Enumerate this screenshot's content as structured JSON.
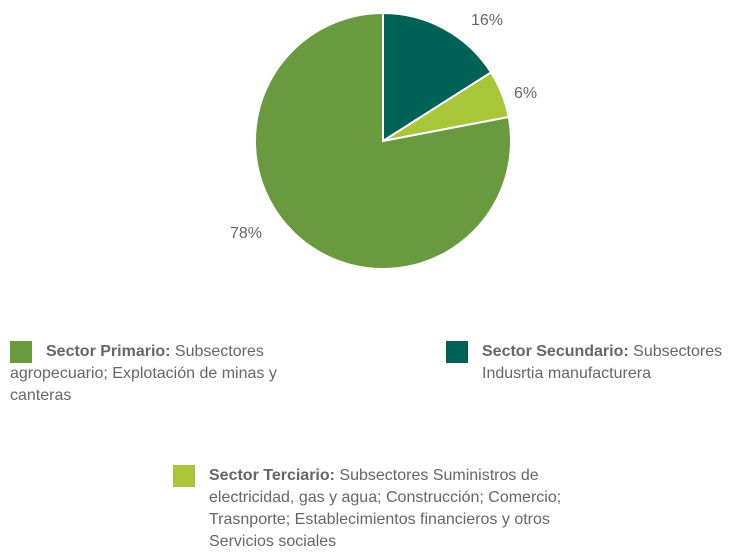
{
  "chart_data": {
    "type": "pie",
    "categories": [
      "Sector Primario",
      "Sector Secundario",
      "Sector Terciario"
    ],
    "values": [
      78,
      16,
      6
    ],
    "value_labels": [
      "78%",
      "16%",
      "6%"
    ],
    "colors": [
      "#6a9a3f",
      "#006157",
      "#a9c63b"
    ],
    "legend_placement": "bottom"
  },
  "legend": [
    {
      "label": "Sector Primario:",
      "description": " Subsectores agropecuario; Explotación de minas y canteras",
      "color": "#6a9a3f"
    },
    {
      "label": "Sector Secundario:",
      "description": " Subsectores Indusrtia manufacturera",
      "color": "#006157"
    },
    {
      "label": "Sector Terciario:",
      "description": " Subsectores Suministros de electricidad, gas y agua; Construcción; Comercio; Trasnporte; Establecimientos financieros y otros Servicios sociales",
      "color": "#a9c63b"
    }
  ]
}
